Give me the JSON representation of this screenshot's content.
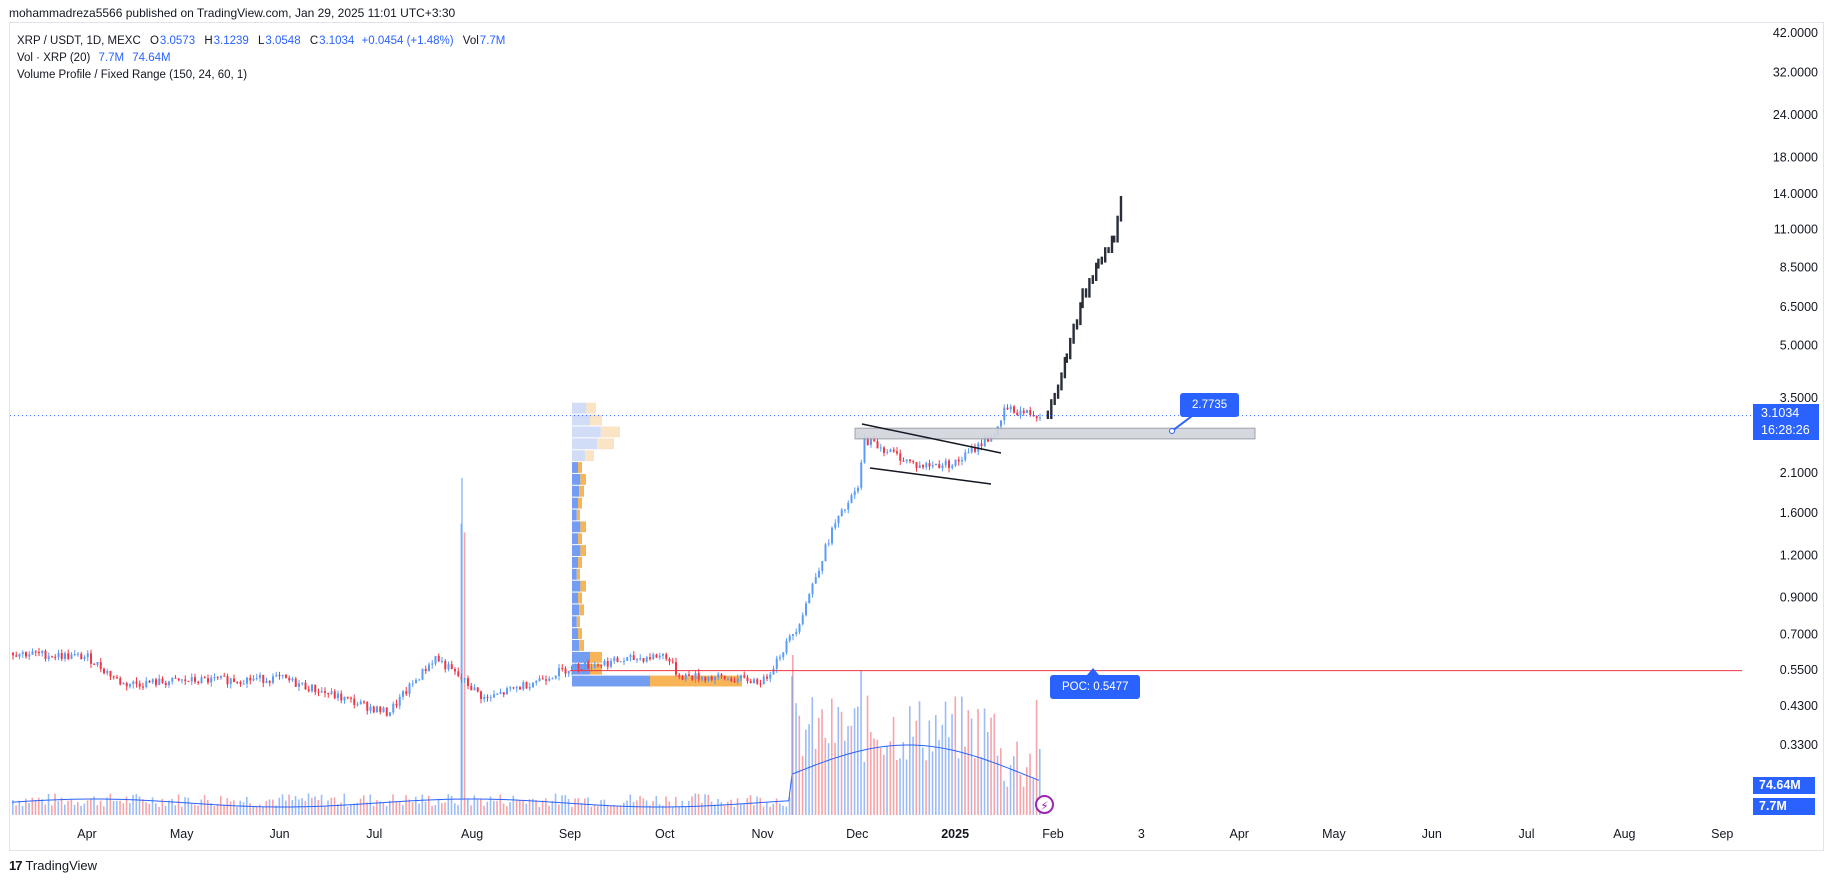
{
  "header": {
    "published_by": "mohammadreza5566 published on TradingView.com, Jan 29, 2025 11:01 UTC+3:30"
  },
  "legend": {
    "symbol": "XRP / USDT, 1D, MEXC",
    "o_label": "O",
    "o_value": "3.0573",
    "h_label": "H",
    "h_value": "3.1239",
    "l_label": "L",
    "l_value": "3.0548",
    "c_label": "C",
    "c_value": "3.1034",
    "change": "+0.0454 (+1.48%)",
    "vol_label": "Vol",
    "vol_value": "7.7M",
    "vol_indicator": "Vol · XRP (20)",
    "vol_indicator_v1": "7.7M",
    "vol_indicator_v2": "74.64M",
    "volume_profile": "Volume Profile / Fixed Range (150, 24, 60, 1)"
  },
  "price_scale": {
    "ticks": [
      "42.0000",
      "32.0000",
      "24.0000",
      "18.0000",
      "14.0000",
      "11.0000",
      "8.5000",
      "6.5000",
      "5.0000",
      "3.5000",
      "2.1000",
      "1.6000",
      "1.2000",
      "0.9000",
      "0.7000",
      "0.5500",
      "0.4300",
      "0.3300"
    ],
    "current_price": "3.1034",
    "countdown": "16:28:26",
    "vol_ma": "74.64M",
    "vol_last": "7.7M"
  },
  "time_scale": {
    "labels": [
      "Apr",
      "May",
      "Jun",
      "Jul",
      "Aug",
      "Sep",
      "Oct",
      "Nov",
      "Dec",
      "2025",
      "Feb",
      "3",
      "Apr",
      "May",
      "Jun",
      "Jul",
      "Aug",
      "Sep"
    ]
  },
  "annotations": {
    "resistance_label": "2.7735",
    "poc_label": "POC: 0.5477"
  },
  "footer": {
    "brand": "TradingView",
    "logo_glyph": "17"
  },
  "colors": {
    "up": "#5b9cf6",
    "down": "#f23645",
    "accent": "#2962ff",
    "projection": "#2a2e39",
    "poc_line": "#f23645",
    "profile_up": "#5b8def",
    "profile_down": "#f7a93b"
  },
  "chart_data": {
    "type": "candlestick",
    "symbol": "XRP / USDT",
    "interval": "1D",
    "exchange": "MEXC",
    "scale": "log",
    "ylim": [
      0.27,
      45
    ],
    "last_close": 3.1034,
    "price_path_approx": [
      {
        "date": "2024-03-06",
        "close": 0.62
      },
      {
        "date": "2024-04-01",
        "close": 0.6
      },
      {
        "date": "2024-04-12",
        "close": 0.5
      },
      {
        "date": "2024-05-01",
        "close": 0.51
      },
      {
        "date": "2024-06-01",
        "close": 0.52
      },
      {
        "date": "2024-07-05",
        "close": 0.41
      },
      {
        "date": "2024-07-20",
        "close": 0.6
      },
      {
        "date": "2024-08-05",
        "close": 0.45
      },
      {
        "date": "2024-09-01",
        "close": 0.56
      },
      {
        "date": "2024-10-01",
        "close": 0.61
      },
      {
        "date": "2024-10-05",
        "close": 0.53
      },
      {
        "date": "2024-11-01",
        "close": 0.51
      },
      {
        "date": "2024-11-12",
        "close": 0.75
      },
      {
        "date": "2024-11-23",
        "close": 1.45
      },
      {
        "date": "2024-12-01",
        "close": 1.9
      },
      {
        "date": "2024-12-03",
        "close": 2.65
      },
      {
        "date": "2024-12-20",
        "close": 2.2
      },
      {
        "date": "2025-01-01",
        "close": 2.25
      },
      {
        "date": "2025-01-15",
        "close": 2.85
      },
      {
        "date": "2025-01-16",
        "close": 3.25
      },
      {
        "date": "2025-01-29",
        "close": 3.1
      }
    ],
    "projection_path_approx": [
      {
        "date": "2025-01-30",
        "close": 3.2
      },
      {
        "date": "2025-02-05",
        "close": 4.6
      },
      {
        "date": "2025-02-10",
        "close": 7.0
      },
      {
        "date": "2025-02-15",
        "close": 8.7
      },
      {
        "date": "2025-02-20",
        "close": 10.5
      },
      {
        "date": "2025-02-23",
        "close": 15.0
      }
    ],
    "resistance_zone": [
      2.65,
      2.85
    ],
    "resistance_value": 2.7735,
    "poc": 0.5477,
    "volume": {
      "ma_length": 20,
      "ma_last": "74.64M",
      "last": "7.7M"
    },
    "volume_profile": {
      "settings": "150, 24, 60, 1",
      "range": [
        0.49,
        3.4
      ],
      "rows": 24
    },
    "grid": false
  }
}
